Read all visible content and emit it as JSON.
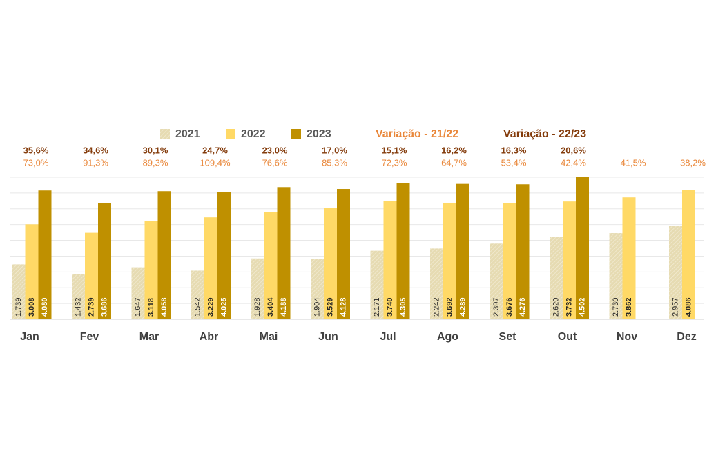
{
  "chart_data": {
    "type": "bar",
    "categories": [
      "Jan",
      "Fev",
      "Mar",
      "Abr",
      "Mai",
      "Jun",
      "Jul",
      "Ago",
      "Set",
      "Out",
      "Nov",
      "Dez"
    ],
    "series": [
      {
        "name": "2021",
        "color": "#e6dbb2",
        "values": [
          1739,
          1432,
          1647,
          1542,
          1928,
          1904,
          2171,
          2242,
          2397,
          2620,
          2730,
          2957
        ],
        "value_labels": [
          "1.739",
          "1.432",
          "1.647",
          "1.542",
          "1.928",
          "1.904",
          "2.171",
          "2.242",
          "2.397",
          "2.620",
          "2.730",
          "2.957"
        ]
      },
      {
        "name": "2022",
        "color": "#ffd966",
        "values": [
          3008,
          2739,
          3118,
          3229,
          3404,
          3529,
          3740,
          3692,
          3676,
          3732,
          3862,
          4086
        ],
        "value_labels": [
          "3.008",
          "2.739",
          "3.118",
          "3.229",
          "3.404",
          "3.529",
          "3.740",
          "3.692",
          "3.676",
          "3.732",
          "3.862",
          "4.086"
        ]
      },
      {
        "name": "2023",
        "color": "#bf9000",
        "values": [
          4080,
          3686,
          4058,
          4025,
          4188,
          4128,
          4305,
          4289,
          4276,
          4502,
          null,
          null
        ],
        "value_labels": [
          "4.080",
          "3.686",
          "4.058",
          "4.025",
          "4.188",
          "4.128",
          "4.305",
          "4.289",
          "4.276",
          "4.502",
          null,
          null
        ]
      }
    ],
    "variations": [
      {
        "name": "Variação - 21/22",
        "color": "#e9873a",
        "values": [
          73.0,
          91.3,
          89.3,
          109.4,
          76.6,
          85.3,
          72.3,
          64.7,
          53.4,
          42.4,
          41.5,
          38.2
        ],
        "value_labels": [
          "73,0%",
          "91,3%",
          "89,3%",
          "109,4%",
          "76,6%",
          "85,3%",
          "72,3%",
          "64,7%",
          "53,4%",
          "42,4%",
          "41,5%",
          "38,2%"
        ]
      },
      {
        "name": "Variação - 22/23",
        "color": "#843c0c",
        "values": [
          35.6,
          34.6,
          30.1,
          24.7,
          23.0,
          17.0,
          15.1,
          16.2,
          16.3,
          20.6,
          null,
          null
        ],
        "value_labels": [
          "35,6%",
          "34,6%",
          "30,1%",
          "24,7%",
          "23,0%",
          "17,0%",
          "15,1%",
          "16,2%",
          "16,3%",
          "20,6%",
          null,
          null
        ]
      }
    ],
    "ylim": [
      0,
      4500
    ],
    "yticks": [
      0,
      500,
      1000,
      1500,
      2000,
      2500,
      3000,
      3500,
      4000,
      4500
    ],
    "grid": true
  }
}
